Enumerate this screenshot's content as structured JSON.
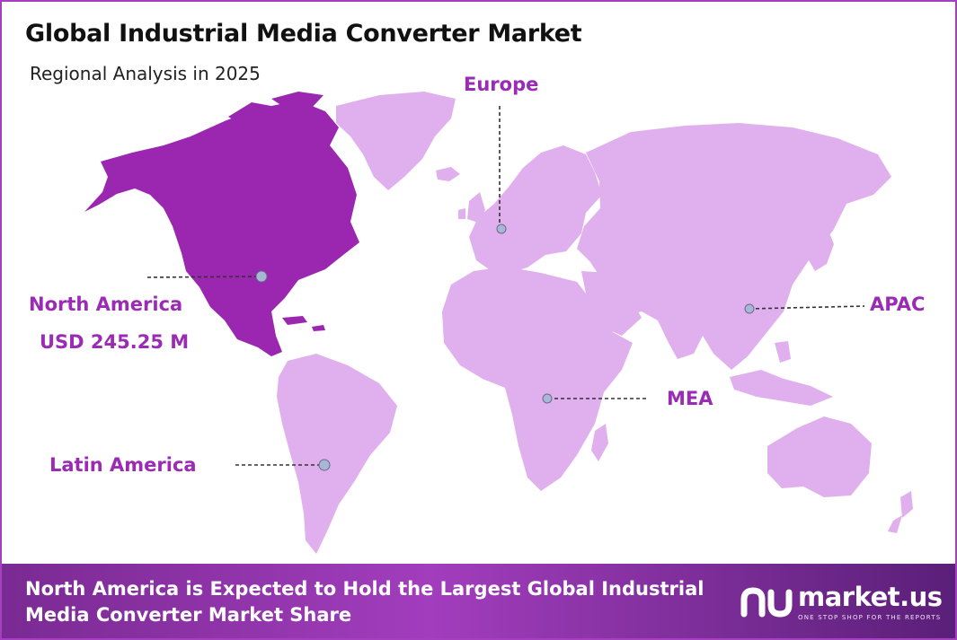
{
  "title": "Global Industrial Media Converter Market",
  "subtitle": "Regional Analysis in 2025",
  "regions": {
    "north_america": {
      "name": "North America",
      "value": "USD 245.25 M"
    },
    "europe": {
      "name": "Europe"
    },
    "apac": {
      "name": "APAC"
    },
    "mea": {
      "name": "MEA"
    },
    "latin_america": {
      "name": "Latin America"
    }
  },
  "footer": {
    "text": "North America is Expected to Hold the Largest Global Industrial Media Converter Market Share"
  },
  "brand": {
    "name": "market.us",
    "tagline": "ONE STOP SHOP FOR THE REPORTS",
    "icon": "market-us-logo-icon"
  },
  "colors": {
    "highlight": "#9b27b0",
    "land": "#e0b0ee",
    "accent_text": "#9b2ab5",
    "footer": "#8b2fa6"
  }
}
